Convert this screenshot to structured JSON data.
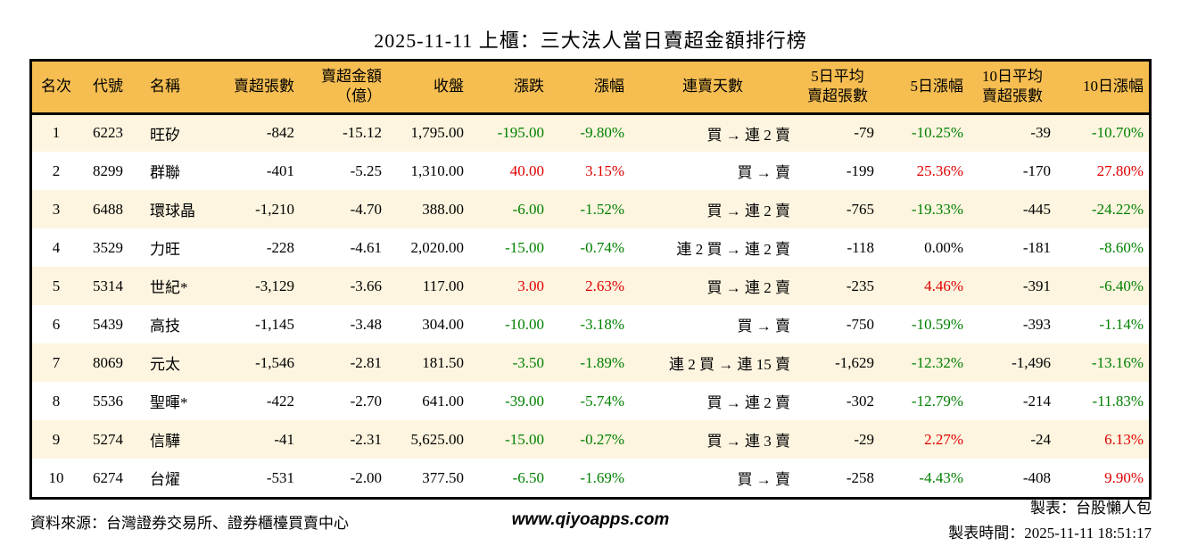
{
  "title": "2025-11-11 上櫃：三大法人當日賣超金額排行榜",
  "colors": {
    "up_red": "#E00000",
    "down_green": "#008000",
    "header_bg": "#F6BE51",
    "row_alt_bg": "#FDF5DF",
    "border": "#000000"
  },
  "table": {
    "column_keys": [
      "rank",
      "code",
      "name",
      "net-sell-shares",
      "net-sell-amount-100m",
      "close",
      "change",
      "change-pct",
      "sell-streak",
      "avg5-net-sell-shares",
      "pct5",
      "avg10-net-sell-shares",
      "pct10"
    ],
    "headers": [
      "名次",
      "代號",
      "名稱",
      "賣超張數",
      "賣超金額\n（億）",
      "收盤",
      "漲跌",
      "漲幅",
      "連賣天數",
      "5日平均\n賣超張數",
      "5日漲幅",
      "10日平均\n賣超張數",
      "10日漲幅"
    ],
    "rows": [
      [
        "1",
        "6223",
        "旺矽",
        "-842",
        "-15.12",
        "1,795.00",
        "-195.00",
        "-9.80%",
        "買 → 連 2 賣",
        "-79",
        "-10.25%",
        "-39",
        "-10.70%"
      ],
      [
        "2",
        "8299",
        "群聯",
        "-401",
        "-5.25",
        "1,310.00",
        "40.00",
        "3.15%",
        "買 → 賣",
        "-199",
        "25.36%",
        "-170",
        "27.80%"
      ],
      [
        "3",
        "6488",
        "環球晶",
        "-1,210",
        "-4.70",
        "388.00",
        "-6.00",
        "-1.52%",
        "買 → 連 2 賣",
        "-765",
        "-19.33%",
        "-445",
        "-24.22%"
      ],
      [
        "4",
        "3529",
        "力旺",
        "-228",
        "-4.61",
        "2,020.00",
        "-15.00",
        "-0.74%",
        "連 2 買 → 連 2 賣",
        "-118",
        "0.00%",
        "-181",
        "-8.60%"
      ],
      [
        "5",
        "5314",
        "世紀*",
        "-3,129",
        "-3.66",
        "117.00",
        "3.00",
        "2.63%",
        "買 → 連 2 賣",
        "-235",
        "4.46%",
        "-391",
        "-6.40%"
      ],
      [
        "6",
        "5439",
        "高技",
        "-1,145",
        "-3.48",
        "304.00",
        "-10.00",
        "-3.18%",
        "買 → 賣",
        "-750",
        "-10.59%",
        "-393",
        "-1.14%"
      ],
      [
        "7",
        "8069",
        "元太",
        "-1,546",
        "-2.81",
        "181.50",
        "-3.50",
        "-1.89%",
        "連 2 買 → 連 15 賣",
        "-1,629",
        "-12.32%",
        "-1,496",
        "-13.16%"
      ],
      [
        "8",
        "5536",
        "聖暉*",
        "-422",
        "-2.70",
        "641.00",
        "-39.00",
        "-5.74%",
        "買 → 連 2 賣",
        "-302",
        "-12.79%",
        "-214",
        "-11.83%"
      ],
      [
        "9",
        "5274",
        "信驊",
        "-41",
        "-2.31",
        "5,625.00",
        "-15.00",
        "-0.27%",
        "買 → 連 3 賣",
        "-29",
        "2.27%",
        "-24",
        "6.13%"
      ],
      [
        "10",
        "6274",
        "台燿",
        "-531",
        "-2.00",
        "377.50",
        "-6.50",
        "-1.69%",
        "買 → 賣",
        "-258",
        "-4.43%",
        "-408",
        "9.90%"
      ]
    ]
  },
  "footer": {
    "source": "資料來源：台灣證券交易所、證券櫃檯買賣中心",
    "website": "www.qiyoapps.com",
    "maker": "製表：台股懶人包",
    "generated": "製表時間：2025-11-11 18:51:17"
  }
}
